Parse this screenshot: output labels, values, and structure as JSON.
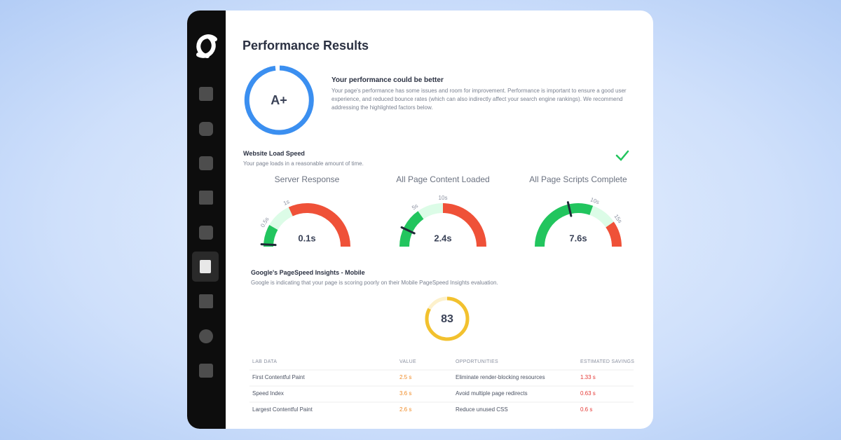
{
  "header": {
    "title": "Performance Results"
  },
  "grade": {
    "label": "A+",
    "heading": "Your performance could be better",
    "description": "Your page's performance has some issues and room for improvement. Performance is important to ensure a good user experience, and reduced bounce rates (which can also indirectly affect your search engine rankings). We recommend addressing the highlighted factors below."
  },
  "load_speed": {
    "title": "Website Load Speed",
    "subtitle": "Your page loads in a reasonable amount of time.",
    "gauges": [
      {
        "title": "Server Response",
        "value": "0.1s",
        "ticks": [
          "0.5s",
          "1s"
        ]
      },
      {
        "title": "All Page Content Loaded",
        "value": "2.4s",
        "ticks": [
          "5s",
          "10s"
        ]
      },
      {
        "title": "All Page Scripts Complete",
        "value": "7.6s",
        "ticks": [
          "10s",
          "15s"
        ]
      }
    ]
  },
  "pagespeed": {
    "title": "Google's PageSpeed Insights - Mobile",
    "subtitle": "Google is indicating that your page is scoring poorly on their Mobile PageSpeed Insights evaluation.",
    "score": 83
  },
  "table": {
    "headers": [
      "LAB DATA",
      "VALUE",
      "OPPORTUNITIES",
      "ESTIMATED SAVINGS"
    ],
    "rows": [
      [
        "First Contentful Paint",
        "2.5 s",
        "Eliminate render-blocking resources",
        "1.33 s"
      ],
      [
        "Speed Index",
        "3.6 s",
        "Avoid multiple page redirects",
        "0.63 s"
      ],
      [
        "Largest Contentful Paint",
        "2.6 s",
        "Reduce unused CSS",
        "0.6 s"
      ]
    ]
  }
}
